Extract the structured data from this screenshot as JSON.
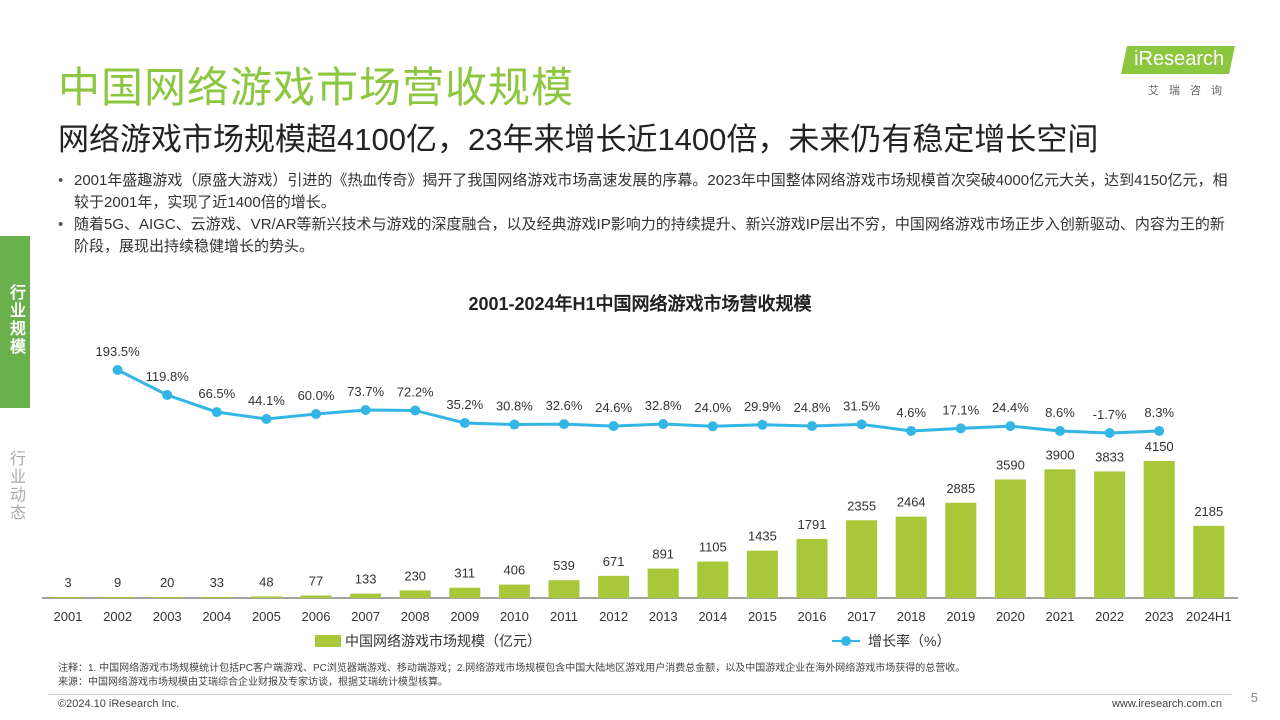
{
  "header": {
    "title": "中国网络游戏市场营收规模",
    "subtitle": "网络游戏市场规模超4100亿，23年来增长近1400倍，未来仍有稳定增长空间"
  },
  "logo": {
    "brand": "iResearch",
    "cn": "艾瑞咨询"
  },
  "bullets": [
    "2001年盛趣游戏（原盛大游戏）引进的《热血传奇》揭开了我国网络游戏市场高速发展的序幕。2023年中国整体网络游戏市场规模首次突破4000亿元大关，达到4150亿元，相较于2001年，实现了近1400倍的增长。",
    "随着5G、AIGC、云游戏、VR/AR等新兴技术与游戏的深度融合，以及经典游戏IP影响力的持续提升、新兴游戏IP层出不穷，中国网络游戏市场正步入创新驱动、内容为王的新阶段，展现出持续稳健增长的势头。"
  ],
  "side_nav": {
    "active": "行业规模",
    "inactive": "行业动态"
  },
  "chart_data": {
    "type": "bar",
    "title": "2001-2024年H1中国网络游戏市场营收规模",
    "categories": [
      "2001",
      "2002",
      "2003",
      "2004",
      "2005",
      "2006",
      "2007",
      "2008",
      "2009",
      "2010",
      "2011",
      "2012",
      "2013",
      "2014",
      "2015",
      "2016",
      "2017",
      "2018",
      "2019",
      "2020",
      "2021",
      "2022",
      "2023",
      "2024H1"
    ],
    "series": [
      {
        "name": "中国网络游戏市场规模（亿元）",
        "type": "bar",
        "color": "#a8c83a",
        "values": [
          3,
          9,
          20,
          33,
          48,
          77,
          133,
          230,
          311,
          406,
          539,
          671,
          891,
          1105,
          1435,
          1791,
          2355,
          2464,
          2885,
          3590,
          3900,
          3833,
          4150,
          2185
        ]
      },
      {
        "name": "增长率（%）",
        "type": "line",
        "color": "#33b5e5",
        "values": [
          null,
          193.5,
          119.8,
          66.5,
          44.1,
          60.0,
          73.7,
          72.2,
          35.2,
          30.8,
          32.6,
          24.6,
          32.8,
          24.0,
          29.9,
          24.8,
          31.5,
          4.6,
          17.1,
          24.4,
          8.6,
          -1.7,
          8.3,
          null
        ],
        "labels": [
          null,
          "193.5%",
          "119.8%",
          "66.5%",
          "44.1%",
          "60.0%",
          "73.7%",
          "72.2%",
          "35.2%",
          "30.8%",
          "32.6%",
          "24.6%",
          "32.8%",
          "24.0%",
          "29.9%",
          "24.8%",
          "31.5%",
          "4.6%",
          "17.1%",
          "24.4%",
          "8.6%",
          "-1.7%",
          "8.3%",
          null
        ]
      }
    ],
    "legend": "bottom",
    "grid": false
  },
  "notes": {
    "note": "注释：1. 中国网络游戏市场规模统计包括PC客户端游戏、PC浏览器端游戏、移动端游戏；2.网络游戏市场规模包含中国大陆地区游戏用户消费总金额，以及中国游戏企业在海外网络游戏市场获得的总营收。",
    "source": "来源：中国网络游戏市场规模由艾瑞综合企业财报及专家访谈，根据艾瑞统计模型核算。"
  },
  "footer": {
    "copyright": "©2024.10 iResearch Inc.",
    "website": "www.iresearch.com.cn",
    "page": "5"
  }
}
